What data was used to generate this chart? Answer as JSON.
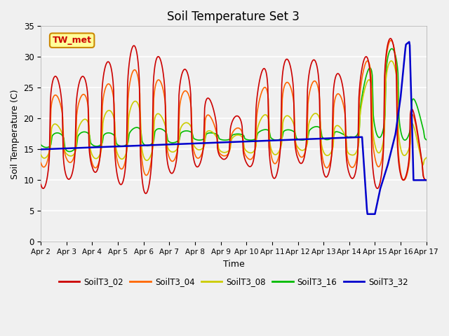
{
  "title": "Soil Temperature Set 3",
  "xlabel": "Time",
  "ylabel": "Soil Temperature (C)",
  "ylim": [
    0,
    35
  ],
  "background_color": "#f0f0f0",
  "series_colors": {
    "SoilT3_02": "#cc0000",
    "SoilT3_04": "#ff6600",
    "SoilT3_08": "#cccc00",
    "SoilT3_16": "#00bb00",
    "SoilT3_32": "#0000cc"
  },
  "annotation_text": "TW_met",
  "annotation_bg": "#ffff99",
  "annotation_border": "#cc8800",
  "x_tick_labels": [
    "Apr 2",
    "Apr 3",
    "Apr 4",
    "Apr 5",
    "Apr 6",
    "Apr 7",
    "Apr 8",
    "Apr 9",
    "Apr 10",
    "Apr 11",
    "Apr 12",
    "Apr 13",
    "Apr 14",
    "Apr 15",
    "Apr 16",
    "Apr 17"
  ],
  "grid_color": "#ffffff",
  "title_fontsize": 12
}
